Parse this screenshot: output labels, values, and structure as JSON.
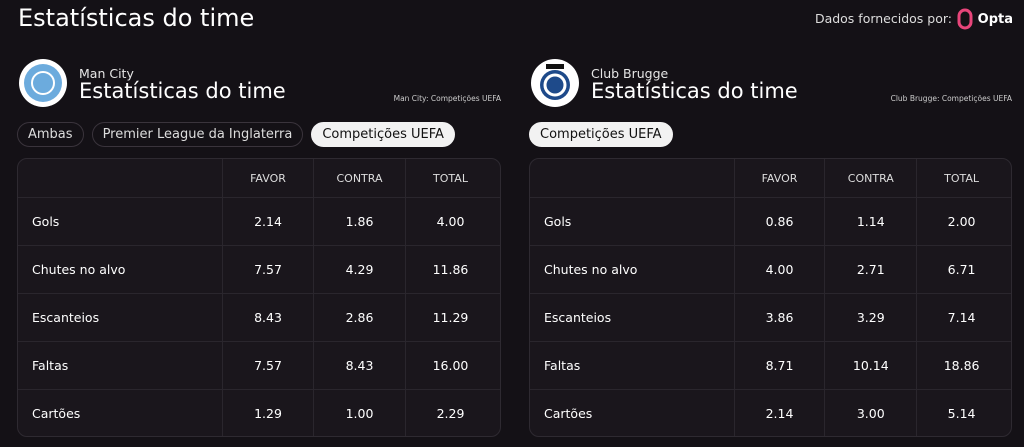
{
  "header": {
    "title": "Estatísticas do time",
    "provider_label": "Dados fornecidos por:",
    "provider": "Opta"
  },
  "teams": [
    {
      "name": "Man City",
      "title": "Estatísticas do time",
      "note": "Man City: Competições UEFA",
      "filters": [
        {
          "label": "Ambas",
          "selected": false
        },
        {
          "label": "Premier League da Inglaterra",
          "selected": false
        },
        {
          "label": "Competições UEFA",
          "selected": true
        }
      ],
      "table": {
        "columns": [
          "FAVOR",
          "CONTRA",
          "TOTAL"
        ],
        "rows": [
          [
            "Gols",
            "2.14",
            "1.86",
            "4.00"
          ],
          [
            "Chutes no alvo",
            "7.57",
            "4.29",
            "11.86"
          ],
          [
            "Escanteios",
            "8.43",
            "2.86",
            "11.29"
          ],
          [
            "Faltas",
            "7.57",
            "8.43",
            "16.00"
          ],
          [
            "Cartões",
            "1.29",
            "1.00",
            "2.29"
          ]
        ]
      }
    },
    {
      "name": "Club Brugge",
      "title": "Estatísticas do time",
      "note": "Club Brugge: Competições UEFA",
      "filters": [
        {
          "label": "Competições UEFA",
          "selected": true
        }
      ],
      "table": {
        "columns": [
          "FAVOR",
          "CONTRA",
          "TOTAL"
        ],
        "rows": [
          [
            "Gols",
            "0.86",
            "1.14",
            "2.00"
          ],
          [
            "Chutes no alvo",
            "4.00",
            "2.71",
            "6.71"
          ],
          [
            "Escanteios",
            "3.86",
            "3.29",
            "7.14"
          ],
          [
            "Faltas",
            "8.71",
            "10.14",
            "18.86"
          ],
          [
            "Cartões",
            "2.14",
            "3.00",
            "5.14"
          ]
        ]
      }
    }
  ]
}
